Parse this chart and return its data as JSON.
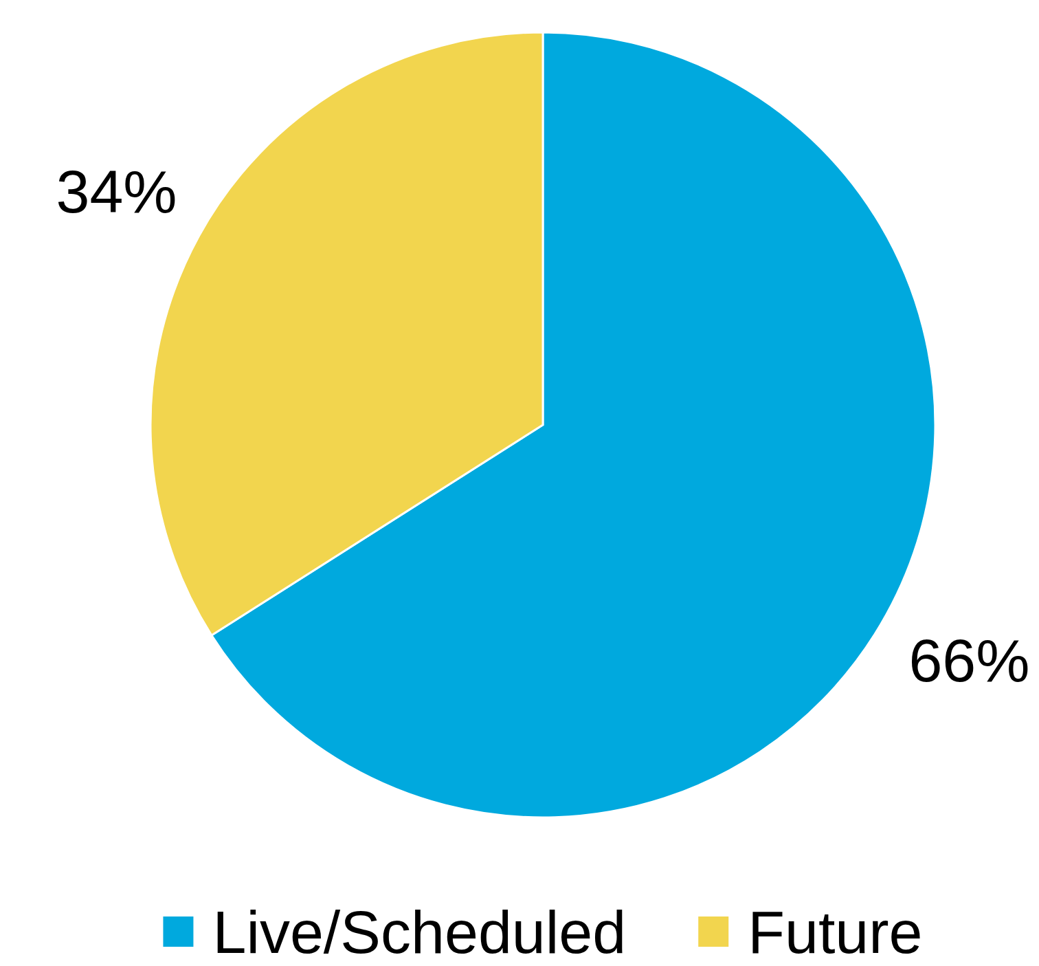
{
  "chart_data": {
    "type": "pie",
    "categories": [
      "Live/Scheduled",
      "Future"
    ],
    "values": [
      66,
      34
    ],
    "colors": [
      "#00a9de",
      "#f2d54e"
    ],
    "value_labels": [
      "66%",
      "34%"
    ],
    "legend": "bottom"
  }
}
